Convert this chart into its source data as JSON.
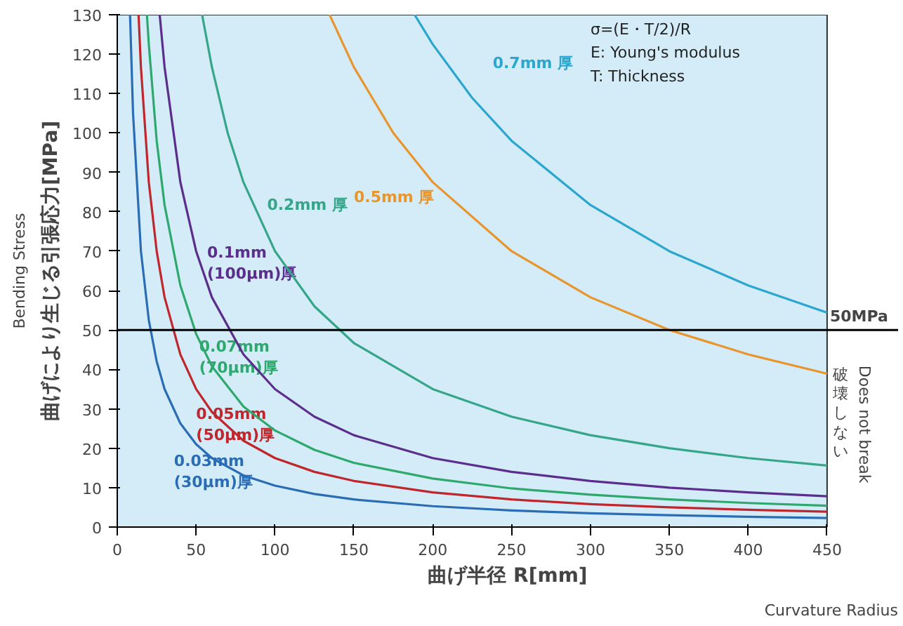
{
  "chart_data": {
    "type": "line",
    "xlabel": "曲げ半径 R[mm]",
    "ylabel": "曲げにより生じる引張応力[MPa]",
    "xlim": [
      0,
      450
    ],
    "ylim": [
      0,
      130
    ],
    "xticks": [
      0,
      50,
      100,
      150,
      200,
      250,
      300,
      350,
      400,
      450
    ],
    "yticks": [
      0,
      10,
      20,
      30,
      40,
      50,
      60,
      70,
      80,
      90,
      100,
      110,
      120,
      130
    ],
    "grid": false,
    "legend": false,
    "marker": "none",
    "line_style": "solid",
    "series": [
      {
        "name": "0.03mm\n(30μm)厚",
        "color": "#2a6db5",
        "x": [
          8.1,
          10,
          15,
          20,
          25,
          30,
          40,
          50,
          60,
          80,
          100,
          125,
          150,
          200,
          250,
          300,
          350,
          400,
          450
        ],
        "values": [
          130,
          105,
          70,
          52.5,
          42,
          35,
          26.3,
          21,
          17.5,
          13.1,
          10.5,
          8.4,
          7,
          5.3,
          4.2,
          3.5,
          3,
          2.6,
          2.3
        ]
      },
      {
        "name": "0.05mm\n(50μm)厚",
        "color": "#c0272d",
        "x": [
          13.5,
          15,
          20,
          25,
          30,
          40,
          50,
          60,
          80,
          100,
          125,
          150,
          200,
          250,
          300,
          350,
          400,
          450
        ],
        "values": [
          130,
          116.7,
          87.5,
          70,
          58.3,
          43.8,
          35,
          29.2,
          21.9,
          17.5,
          14,
          11.7,
          8.8,
          7,
          5.8,
          5,
          4.4,
          3.9
        ]
      },
      {
        "name": "0.07mm\n(70μm)厚",
        "color": "#2fa86e",
        "x": [
          18.8,
          20,
          25,
          30,
          40,
          50,
          60,
          80,
          100,
          125,
          150,
          200,
          250,
          300,
          350,
          400,
          450
        ],
        "values": [
          130,
          122.5,
          98,
          81.7,
          61.3,
          49,
          40.8,
          30.6,
          24.5,
          19.6,
          16.3,
          12.3,
          9.8,
          8.2,
          7,
          6.1,
          5.4
        ]
      },
      {
        "name": "0.1mm\n(100μm)厚",
        "color": "#5b2d8c",
        "x": [
          26.9,
          30,
          40,
          50,
          60,
          80,
          100,
          125,
          150,
          200,
          250,
          300,
          350,
          400,
          450
        ],
        "values": [
          130,
          116.7,
          87.5,
          70,
          58.3,
          43.8,
          35,
          28,
          23.3,
          17.5,
          14,
          11.7,
          10,
          8.8,
          7.8
        ]
      },
      {
        "name": "0.2mm 厚",
        "color": "#35a689",
        "x": [
          53.8,
          60,
          70,
          80,
          100,
          125,
          150,
          200,
          250,
          300,
          350,
          400,
          450
        ],
        "values": [
          130,
          116.7,
          100,
          87.5,
          70,
          56,
          46.7,
          35,
          28,
          23.3,
          20,
          17.5,
          15.6
        ]
      },
      {
        "name": "0.5mm 厚",
        "color": "#e8952e",
        "x": [
          134.6,
          150,
          175,
          200,
          250,
          300,
          350,
          400,
          450
        ],
        "values": [
          130,
          116.7,
          100,
          87.5,
          70,
          58.3,
          50,
          43.8,
          38.9
        ]
      },
      {
        "name": "0.7mm 厚",
        "color": "#2ba6cf",
        "x": [
          188.5,
          200,
          225,
          250,
          300,
          350,
          400,
          450
        ],
        "values": [
          130,
          122.5,
          108.9,
          98,
          81.7,
          70,
          61.3,
          54.4
        ]
      }
    ],
    "ref_lines": [
      {
        "axis": "y",
        "value": 50,
        "label": "50MPa",
        "color": "#000000"
      }
    ],
    "annotations": [
      "σ=(E・T/2)/R",
      "E: Young's modulus",
      "T: Thickness",
      "破壊しない",
      "Does not break",
      "Bending Stress",
      "Curvature Radius"
    ]
  }
}
